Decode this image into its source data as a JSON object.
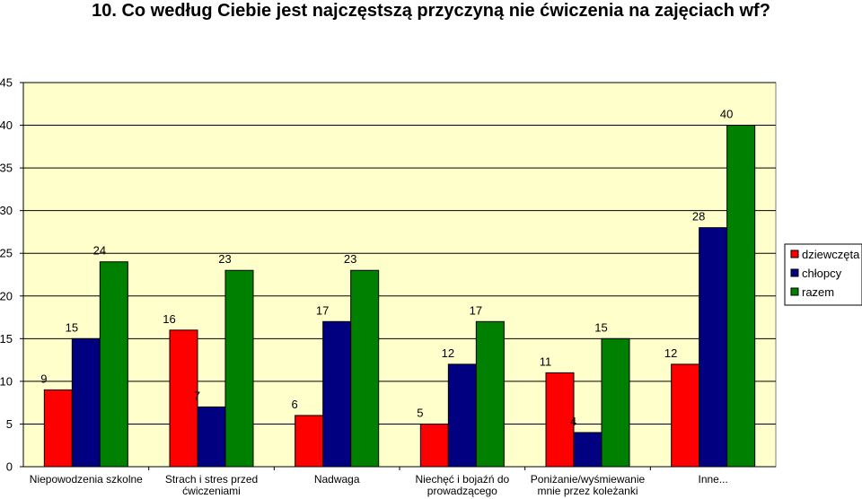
{
  "chart_data": {
    "type": "bar",
    "title": "10. Co według Ciebie jest najczęstszą przyczyną nie ćwiczenia na zajęciach wf?",
    "categories": [
      [
        "Niepowodzenia szkolne"
      ],
      [
        "Strach i stres przed",
        "ćwiczeniami"
      ],
      [
        "Nadwaga"
      ],
      [
        "Niechęć i bojaźń do",
        "prowadzącego"
      ],
      [
        "Poniżanie/wyśmiewanie",
        "mnie przez koleżanki"
      ],
      [
        "Inne..."
      ]
    ],
    "series": [
      {
        "name": "dziewczęta",
        "color": "#ff0000",
        "values": [
          9,
          16,
          6,
          5,
          11,
          12
        ]
      },
      {
        "name": "chłopcy",
        "color": "#000080",
        "values": [
          15,
          7,
          17,
          12,
          4,
          28
        ]
      },
      {
        "name": "razem",
        "color": "#008000",
        "values": [
          24,
          23,
          23,
          17,
          15,
          40
        ]
      }
    ],
    "ylim": [
      0,
      45
    ],
    "yticks": [
      0,
      5,
      10,
      15,
      20,
      25,
      30,
      35,
      40,
      45
    ],
    "plot_background": "#ffffcc",
    "grid": true,
    "legend_position": "right",
    "data_labels": true
  }
}
